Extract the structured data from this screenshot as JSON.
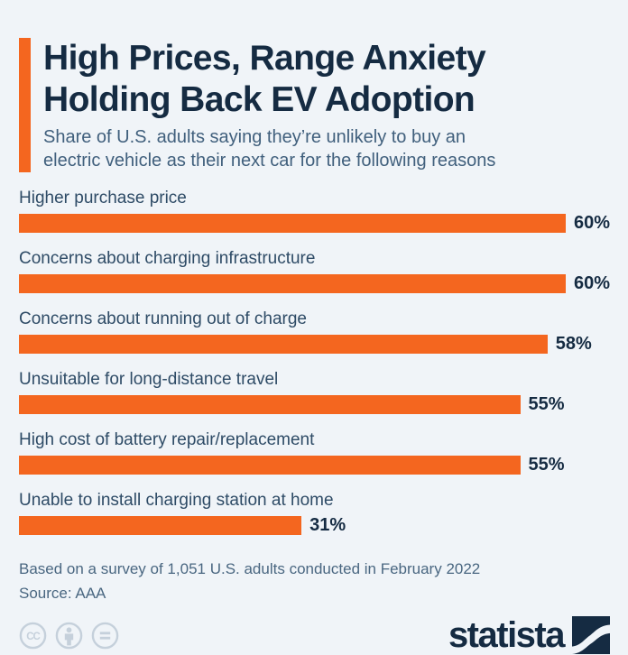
{
  "header": {
    "title_line1": "High Prices, Range Anxiety",
    "title_line2": "Holding Back EV Adoption",
    "subtitle_line1": "Share of U.S. adults saying they’re unlikely to buy an",
    "subtitle_line2": "electric vehicle as their next car for the following reasons"
  },
  "chart_data": {
    "type": "bar",
    "orientation": "horizontal",
    "title": "High Prices, Range Anxiety Holding Back EV Adoption",
    "subtitle": "Share of U.S. adults saying they’re unlikely to buy an electric vehicle as their next car for the following reasons",
    "categories": [
      "Higher purchase price",
      "Concerns about charging infrastructure",
      "Concerns about running out of charge",
      "Unsuitable for long-distance travel",
      "High cost of battery repair/replacement",
      "Unable to install charging station at home"
    ],
    "values": [
      60,
      60,
      58,
      55,
      55,
      31
    ],
    "value_suffix": "%",
    "xlim": [
      0,
      65
    ],
    "grid": false,
    "legend": false,
    "bar_color": "#F4661F"
  },
  "rows": [
    {
      "label": "Higher purchase price",
      "value": 60,
      "value_label": "60%"
    },
    {
      "label": "Concerns about charging infrastructure",
      "value": 60,
      "value_label": "60%"
    },
    {
      "label": "Concerns about running out of charge",
      "value": 58,
      "value_label": "58%"
    },
    {
      "label": "Unsuitable for long-distance travel",
      "value": 55,
      "value_label": "55%"
    },
    {
      "label": "High cost of battery repair/replacement",
      "value": 55,
      "value_label": "55%"
    },
    {
      "label": "Unable to install charging station at home",
      "value": 31,
      "value_label": "31%"
    }
  ],
  "footer": {
    "note": "Based on a survey of 1,051 U.S. adults conducted in February 2022",
    "source": "Source: AAA",
    "license_icons": [
      "cc-icon",
      "cc-by-icon",
      "cc-nd-icon"
    ],
    "logo_text": "statista"
  },
  "colors": {
    "background": "#F0F4F8",
    "accent_orange": "#F4661F",
    "title_navy": "#152B42",
    "label_slate": "#2E4B66",
    "subtitle_slate": "#41607D",
    "footnote_slate": "#4A6781",
    "license_gray": "#C5D0DB"
  }
}
